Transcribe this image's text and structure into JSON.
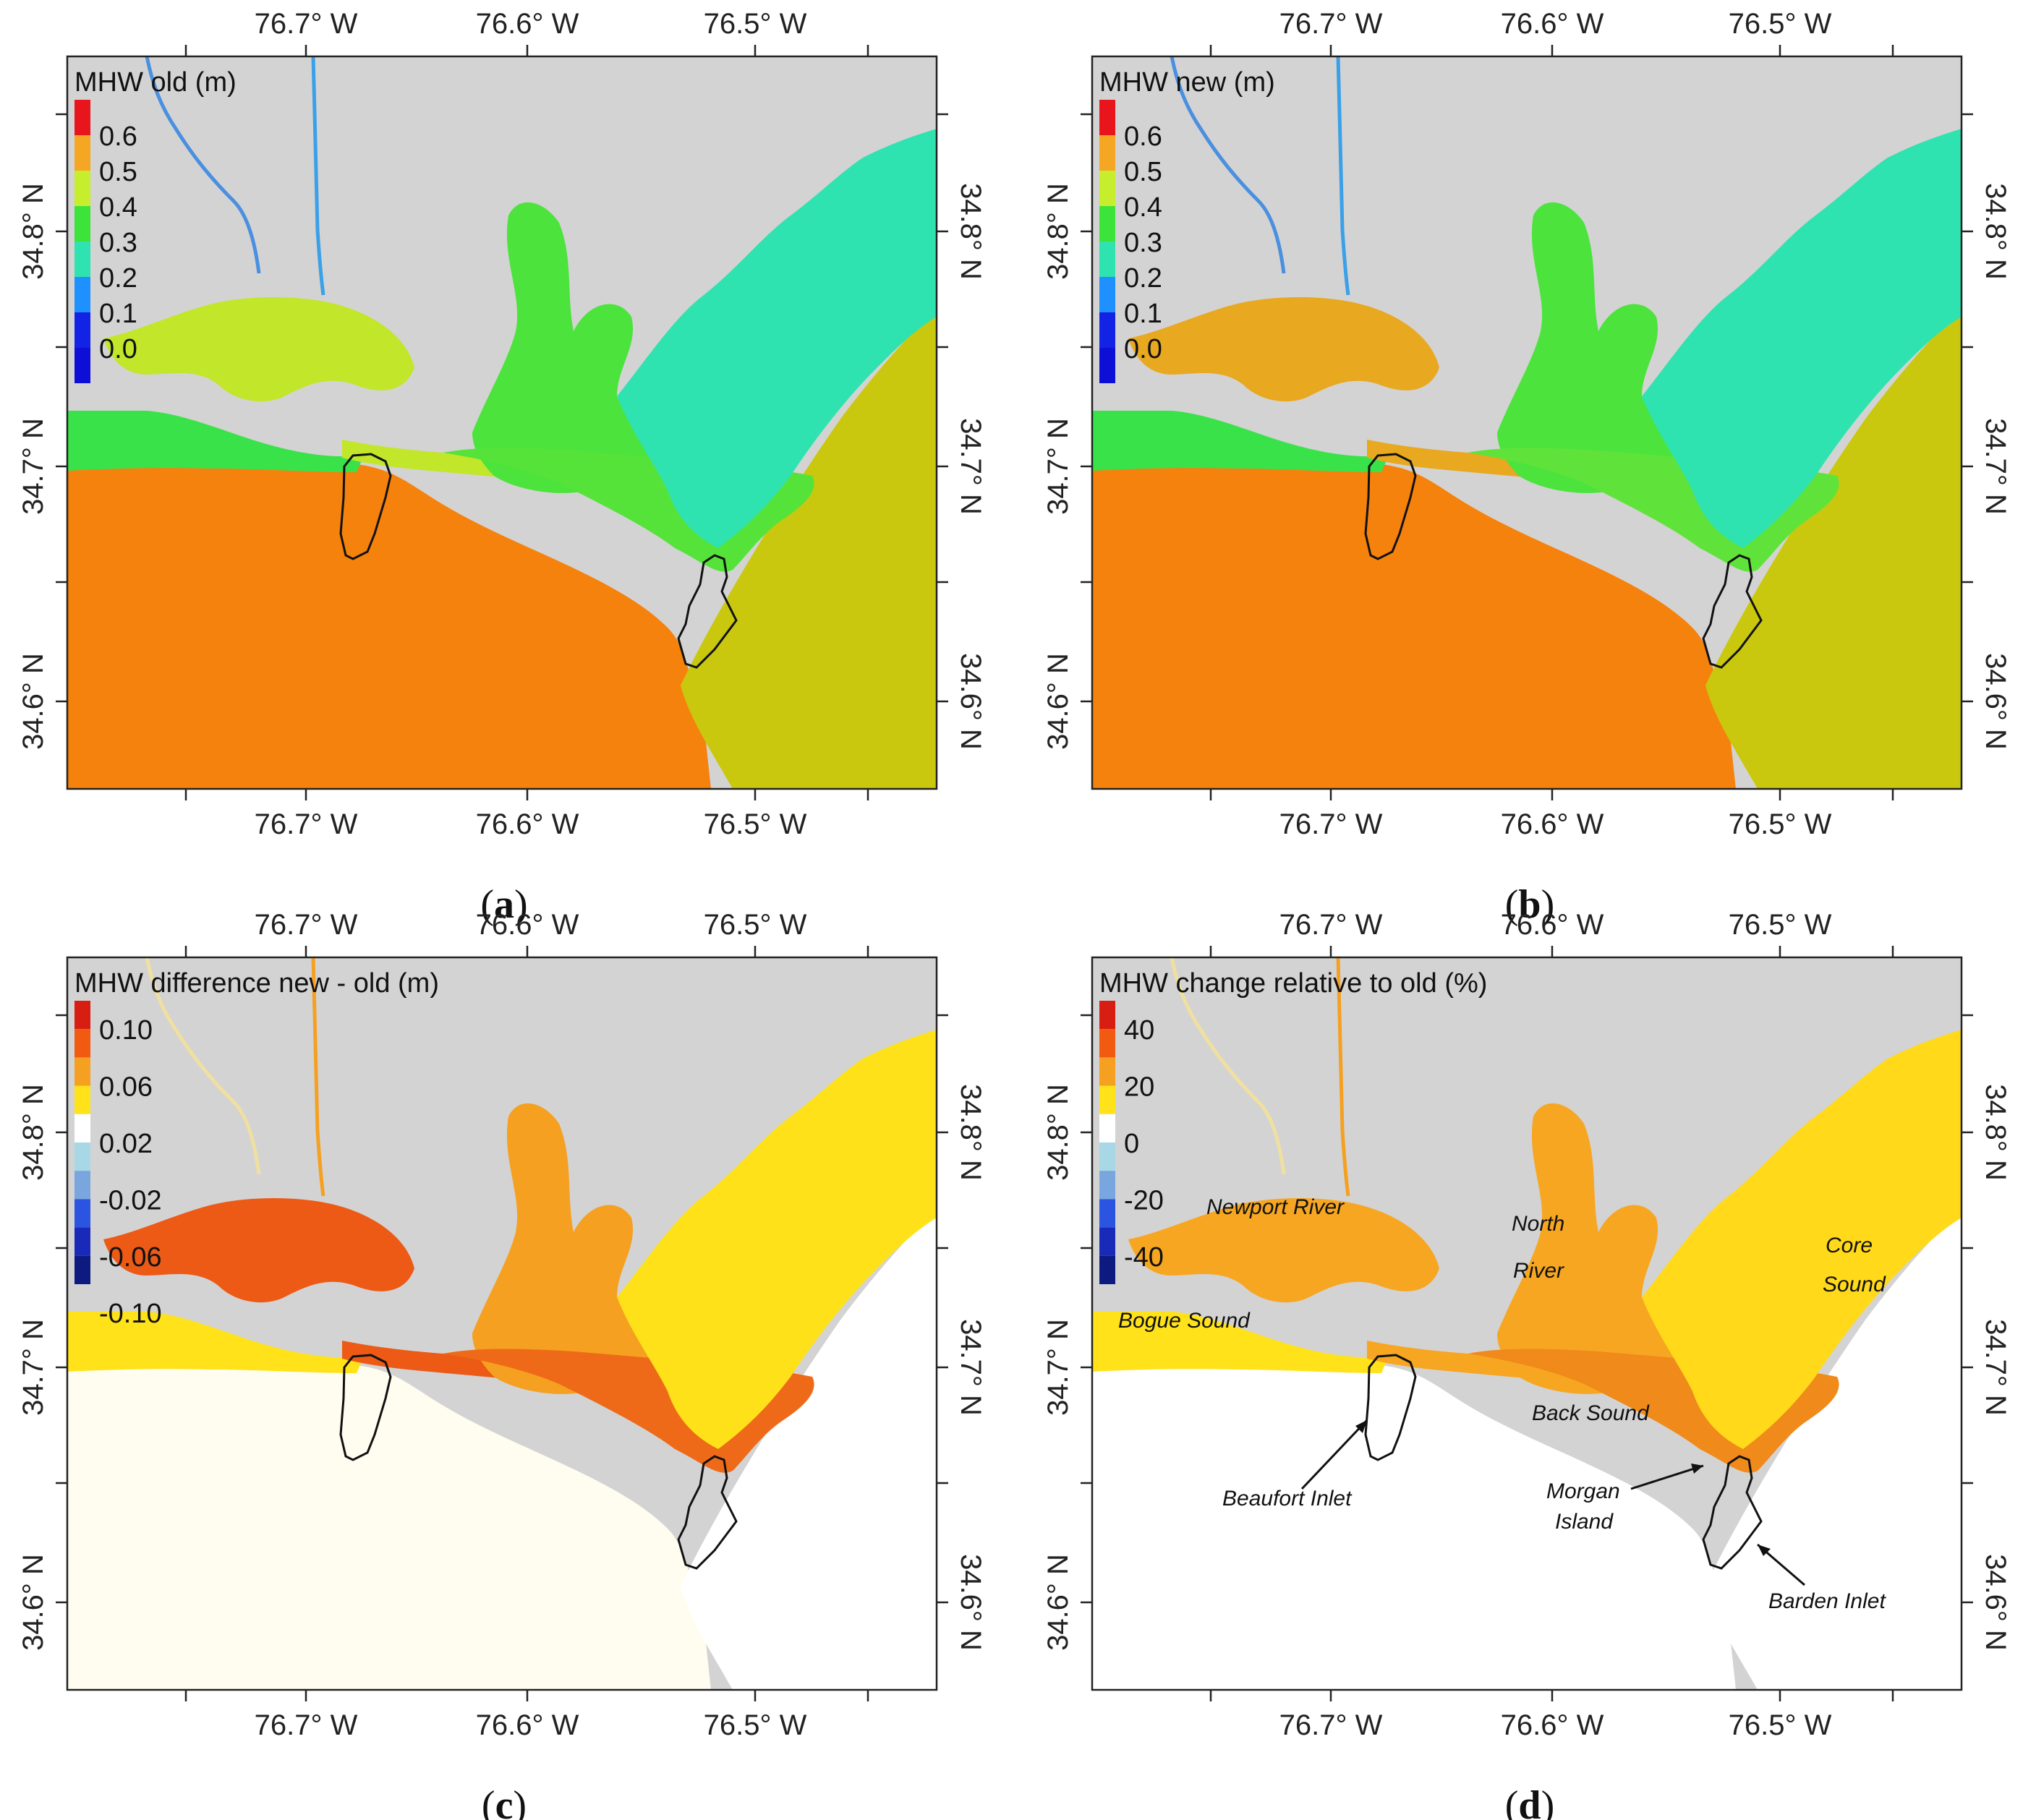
{
  "axes": {
    "x_ticks": [
      "76.7° W",
      "76.6° W",
      "76.5° W"
    ],
    "y_ticks": [
      "34.8° N",
      "34.7° N",
      "34.6° N"
    ]
  },
  "colors": {
    "land": "#d3d3d3",
    "ocean_old_new": "#f5820c",
    "core_shelf": "#c9c80f",
    "outline": "#111111"
  },
  "panels": [
    {
      "id": "a",
      "caption": "a",
      "legend_title": "MHW old (m)",
      "legend_labels": [
        "0.6",
        "0.5",
        "0.4",
        "0.3",
        "0.2",
        "0.1",
        "0.0"
      ],
      "legend_colors": [
        "#e8161c",
        "#f5a623",
        "#c6ee2c",
        "#3be33a",
        "#2ee3b0",
        "#1e90ff",
        "#1323e6",
        "#0d0fd6"
      ],
      "fills": {
        "ocean": "#f5820c",
        "shelf": "#c9c80f",
        "newport": "#c2e62a",
        "north": "#4ce33c",
        "core": "#2ee3b0",
        "back": "#55e33a",
        "bogue": "#3ae24a"
      }
    },
    {
      "id": "b",
      "caption": "b",
      "legend_title": "MHW new (m)",
      "legend_labels": [
        "0.6",
        "0.5",
        "0.4",
        "0.3",
        "0.2",
        "0.1",
        "0.0"
      ],
      "legend_colors": [
        "#e8161c",
        "#f5a623",
        "#c6ee2c",
        "#3be33a",
        "#2ee3b0",
        "#1e90ff",
        "#1323e6",
        "#0d0fd6"
      ],
      "fills": {
        "ocean": "#f5820c",
        "shelf": "#c9c80f",
        "newport": "#e8a820",
        "north": "#4ce33c",
        "core": "#2ee3b0",
        "back": "#5fe33a",
        "bogue": "#3ae24a"
      }
    },
    {
      "id": "c",
      "caption": "c",
      "legend_title": "MHW difference new - old (m)",
      "legend_labels": [
        "0.10",
        "0.06",
        "0.02",
        "-0.02",
        "-0.06",
        "-0.10"
      ],
      "legend_colors": [
        "#d81e12",
        "#f25a12",
        "#f5a020",
        "#ffe21a",
        "#ffffff",
        "#a8d8e6",
        "#7aa6e0",
        "#2b55e0",
        "#1a2ab8",
        "#0d1a80"
      ],
      "fills": {
        "ocean": "#fffdf0",
        "shelf": "#ffffff",
        "newport": "#ec5a16",
        "north": "#f5a020",
        "core": "#ffe11a",
        "back": "#ef6a18",
        "bogue": "#ffe21a"
      }
    },
    {
      "id": "d",
      "caption": "d",
      "legend_title": "MHW change relative to old (%)",
      "legend_labels": [
        "40",
        "20",
        "0",
        "-20",
        "-40"
      ],
      "legend_colors": [
        "#d81e12",
        "#f25a12",
        "#f5a020",
        "#ffe21a",
        "#ffffff",
        "#a8d8e6",
        "#7aa6e0",
        "#2b55e0",
        "#1a2ab8",
        "#0d1a80"
      ],
      "fills": {
        "ocean": "#ffffff",
        "shelf": "#ffffff",
        "newport": "#f7a621",
        "north": "#f7a621",
        "core": "#ffd91a",
        "back": "#f08a1a",
        "bogue": "#ffe21a"
      },
      "place_labels": {
        "newport": "Newport River",
        "north_1": "North",
        "north_2": "River",
        "core_1": "Core",
        "core_2": "Sound",
        "bogue": "Bogue Sound",
        "back": "Back Sound",
        "beaufort": "Beaufort Inlet",
        "morgan_1": "Morgan",
        "morgan_2": "Island",
        "barden": "Barden Inlet"
      }
    }
  ]
}
